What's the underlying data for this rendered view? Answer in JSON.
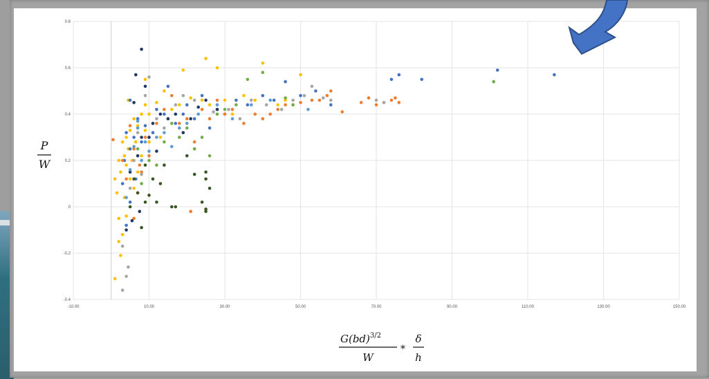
{
  "chart_data": {
    "type": "scatter",
    "title": "",
    "ylabel": {
      "numerator": "P",
      "denominator": "W"
    },
    "xlabel": {
      "numerator": "G(bd)",
      "exponent": "3/2",
      "denominator": "W",
      "times": "*",
      "frac2_numerator": "δ",
      "frac2_denominator": "h"
    },
    "xlim": [
      -10,
      150
    ],
    "ylim": [
      -0.4,
      0.8
    ],
    "x_ticks": [
      "-10.00",
      "10.00",
      "30.00",
      "50.00",
      "70.00",
      "90.00",
      "110.00",
      "130.00",
      "150.00"
    ],
    "y_ticks": [
      "0.8",
      "0.6",
      "0.4",
      "0.2",
      "0",
      "-0.2",
      "-0.4"
    ],
    "x_tick_values": [
      -10,
      10,
      30,
      50,
      70,
      90,
      110,
      130,
      150
    ],
    "y_tick_values": [
      0.8,
      0.6,
      0.4,
      0.2,
      0,
      -0.2,
      -0.4
    ],
    "grid": true,
    "series": [
      {
        "color": "#ffc000",
        "points": [
          [
            1,
            0.12
          ],
          [
            1.5,
            0.06
          ],
          [
            2,
            0.2
          ],
          [
            2,
            -0.05
          ],
          [
            2.5,
            0.15
          ],
          [
            2.5,
            -0.21
          ],
          [
            3,
            0.28
          ],
          [
            3,
            0.1
          ],
          [
            3,
            -0.12
          ],
          [
            3.5,
            0.22
          ],
          [
            3.5,
            0.04
          ],
          [
            4,
            0.18
          ],
          [
            4,
            0.3
          ],
          [
            4,
            -0.04
          ],
          [
            4.5,
            0.25
          ],
          [
            5,
            0.12
          ],
          [
            5,
            0.33
          ],
          [
            5.5,
            0.2
          ],
          [
            6,
            0.38
          ],
          [
            6,
            0.08
          ],
          [
            6.5,
            0.28
          ],
          [
            7,
            0.35
          ],
          [
            7,
            0.15
          ],
          [
            8,
            0.4
          ],
          [
            8,
            0.22
          ],
          [
            9,
            0.33
          ],
          [
            9,
            0.44
          ],
          [
            10,
            0.28
          ],
          [
            10,
            0.4
          ],
          [
            11,
            0.36
          ],
          [
            12,
            0.45
          ],
          [
            13,
            0.3
          ],
          [
            14,
            0.5
          ],
          [
            15,
            0.38
          ],
          [
            16,
            0.42
          ],
          [
            18,
            0.44
          ],
          [
            19,
            0.59
          ],
          [
            20,
            0.36
          ],
          [
            21,
            0.47
          ],
          [
            22,
            0.38
          ],
          [
            24,
            0.46
          ],
          [
            25,
            0.64
          ],
          [
            26,
            0.44
          ],
          [
            28,
            0.6
          ],
          [
            30,
            0.46
          ],
          [
            32,
            0.4
          ],
          [
            35,
            0.48
          ],
          [
            38,
            0.46
          ],
          [
            40,
            0.62
          ],
          [
            42,
            0.46
          ],
          [
            44,
            0.44
          ],
          [
            46,
            0.46
          ],
          [
            48,
            0.44
          ],
          [
            50,
            0.57
          ],
          [
            1,
            -0.31
          ],
          [
            2,
            -0.15
          ],
          [
            4.5,
            0.46
          ],
          [
            9,
            0.55
          ]
        ]
      },
      {
        "color": "#4472c4",
        "points": [
          [
            3,
            0.1
          ],
          [
            3.5,
            0.2
          ],
          [
            4,
            0.32
          ],
          [
            5,
            0.46
          ],
          [
            5,
            0.25
          ],
          [
            6,
            0.3
          ],
          [
            6.5,
            0.12
          ],
          [
            7,
            0.38
          ],
          [
            8,
            0.28
          ],
          [
            9,
            0.35
          ],
          [
            10,
            0.3
          ],
          [
            11,
            0.32
          ],
          [
            12,
            0.42
          ],
          [
            14,
            0.4
          ],
          [
            15,
            0.52
          ],
          [
            17,
            0.36
          ],
          [
            19,
            0.4
          ],
          [
            20,
            0.44
          ],
          [
            22,
            0.38
          ],
          [
            24,
            0.48
          ],
          [
            26,
            0.34
          ],
          [
            28,
            0.42
          ],
          [
            30,
            0.4
          ],
          [
            33,
            0.46
          ],
          [
            36,
            0.44
          ],
          [
            40,
            0.48
          ],
          [
            43,
            0.46
          ],
          [
            46,
            0.54
          ],
          [
            50,
            0.48
          ],
          [
            54,
            0.5
          ],
          [
            58,
            0.44
          ],
          [
            74,
            0.55
          ],
          [
            76,
            0.57
          ],
          [
            82,
            0.55
          ],
          [
            102,
            0.59
          ],
          [
            117,
            0.57
          ],
          [
            5,
            0.02
          ],
          [
            4,
            -0.08
          ]
        ]
      },
      {
        "color": "#ed7d31",
        "points": [
          [
            0.5,
            0.29
          ],
          [
            3,
            0.2
          ],
          [
            4,
            0.12
          ],
          [
            5,
            0.35
          ],
          [
            6,
            0.25
          ],
          [
            6,
            -0.05
          ],
          [
            7,
            0.06
          ],
          [
            7.5,
            0.18
          ],
          [
            8,
            0.15
          ],
          [
            9,
            0.3
          ],
          [
            10,
            0.22
          ],
          [
            12,
            0.36
          ],
          [
            14,
            0.42
          ],
          [
            16,
            0.48
          ],
          [
            18,
            0.36
          ],
          [
            20,
            0.38
          ],
          [
            22,
            0.28
          ],
          [
            24,
            0.42
          ],
          [
            26,
            0.38
          ],
          [
            28,
            0.46
          ],
          [
            30,
            0.4
          ],
          [
            32,
            0.42
          ],
          [
            35,
            0.36
          ],
          [
            38,
            0.4
          ],
          [
            40,
            0.38
          ],
          [
            42,
            0.4
          ],
          [
            44,
            0.42
          ],
          [
            46,
            0.44
          ],
          [
            50,
            0.45
          ],
          [
            53,
            0.46
          ],
          [
            55,
            0.46
          ],
          [
            57,
            0.48
          ],
          [
            58,
            0.5
          ],
          [
            61,
            0.41
          ],
          [
            66,
            0.45
          ],
          [
            68,
            0.47
          ],
          [
            70,
            0.44
          ],
          [
            72,
            0.45
          ],
          [
            74,
            0.46
          ],
          [
            75,
            0.47
          ],
          [
            76,
            0.45
          ],
          [
            21,
            -0.02
          ]
        ]
      },
      {
        "color": "#a5a5a5",
        "points": [
          [
            3,
            -0.17
          ],
          [
            3,
            -0.36
          ],
          [
            4,
            -0.3
          ],
          [
            4.5,
            -0.26
          ],
          [
            5,
            0.08
          ],
          [
            6,
            0.2
          ],
          [
            7,
            0.32
          ],
          [
            8,
            0.14
          ],
          [
            9,
            0.48
          ],
          [
            10,
            0.56
          ],
          [
            12,
            0.38
          ],
          [
            14,
            0.34
          ],
          [
            17,
            0.44
          ],
          [
            19,
            0.48
          ],
          [
            22,
            0.46
          ],
          [
            27,
            0.41
          ],
          [
            31,
            0.42
          ],
          [
            34,
            0.38
          ],
          [
            37,
            0.46
          ],
          [
            41,
            0.44
          ],
          [
            45,
            0.42
          ],
          [
            48,
            0.46
          ],
          [
            51,
            0.48
          ],
          [
            53,
            0.52
          ],
          [
            56,
            0.47
          ],
          [
            58,
            0.46
          ],
          [
            70,
            0.46
          ],
          [
            72,
            0.45
          ]
        ]
      },
      {
        "color": "#70ad47",
        "points": [
          [
            7,
            0.25
          ],
          [
            8,
            0.1
          ],
          [
            10,
            0.2
          ],
          [
            12,
            0.18
          ],
          [
            14,
            0.28
          ],
          [
            16,
            0.36
          ],
          [
            18,
            0.3
          ],
          [
            20,
            0.34
          ],
          [
            22,
            0.25
          ],
          [
            24,
            0.3
          ],
          [
            26,
            0.22
          ],
          [
            28,
            0.4
          ],
          [
            30,
            0.42
          ],
          [
            33,
            0.44
          ],
          [
            36,
            0.55
          ],
          [
            40,
            0.58
          ],
          [
            46,
            0.47
          ],
          [
            48,
            0.44
          ],
          [
            101,
            0.54
          ],
          [
            22,
            0.25
          ]
        ]
      },
      {
        "color": "#1f3864",
        "points": [
          [
            5,
            0.15
          ],
          [
            6,
            0.45
          ],
          [
            6.5,
            0.57
          ],
          [
            7,
            0.22
          ],
          [
            7.5,
            -0.02
          ],
          [
            8,
            0.68
          ],
          [
            8,
            0.3
          ],
          [
            9,
            0.52
          ],
          [
            10,
            0.3
          ],
          [
            11,
            0.36
          ],
          [
            12,
            0.24
          ],
          [
            13,
            0.4
          ],
          [
            15,
            0.38
          ],
          [
            17,
            0.4
          ],
          [
            19,
            0.32
          ],
          [
            21,
            0.38
          ],
          [
            23,
            0.43
          ],
          [
            25,
            0.46
          ],
          [
            28,
            0.42
          ],
          [
            5.5,
            -0.06
          ],
          [
            4,
            -0.1
          ]
        ]
      },
      {
        "color": "#5b9bd5",
        "points": [
          [
            4,
            0.04
          ],
          [
            5,
            0.16
          ],
          [
            6,
            0.26
          ],
          [
            7,
            0.34
          ],
          [
            8,
            0.2
          ],
          [
            9,
            0.28
          ],
          [
            10,
            0.24
          ],
          [
            12,
            0.3
          ],
          [
            14,
            0.32
          ],
          [
            16,
            0.26
          ],
          [
            18,
            0.34
          ],
          [
            20,
            0.36
          ],
          [
            23,
            0.4
          ],
          [
            28,
            0.44
          ],
          [
            32,
            0.38
          ],
          [
            37,
            0.44
          ],
          [
            42,
            0.46
          ],
          [
            52,
            0.42
          ],
          [
            7,
            0.37
          ]
        ]
      },
      {
        "color": "#375623",
        "points": [
          [
            5,
            0.0
          ],
          [
            6,
            0.12
          ],
          [
            7,
            0.06
          ],
          [
            8,
            -0.09
          ],
          [
            9,
            0.18
          ],
          [
            10,
            0.05
          ],
          [
            11,
            0.12
          ],
          [
            12,
            0.02
          ],
          [
            13,
            0.1
          ],
          [
            14,
            0.18
          ],
          [
            16,
            0.0
          ],
          [
            17,
            0.0
          ],
          [
            20,
            0.22
          ],
          [
            22,
            0.14
          ],
          [
            24,
            0.02
          ],
          [
            25,
            -0.01
          ],
          [
            25,
            0.15
          ],
          [
            25,
            0.12
          ],
          [
            26,
            0.08
          ],
          [
            25,
            -0.02
          ],
          [
            9,
            0.02
          ]
        ]
      }
    ]
  },
  "decoration": {
    "arrow_color": "#4472c4"
  }
}
